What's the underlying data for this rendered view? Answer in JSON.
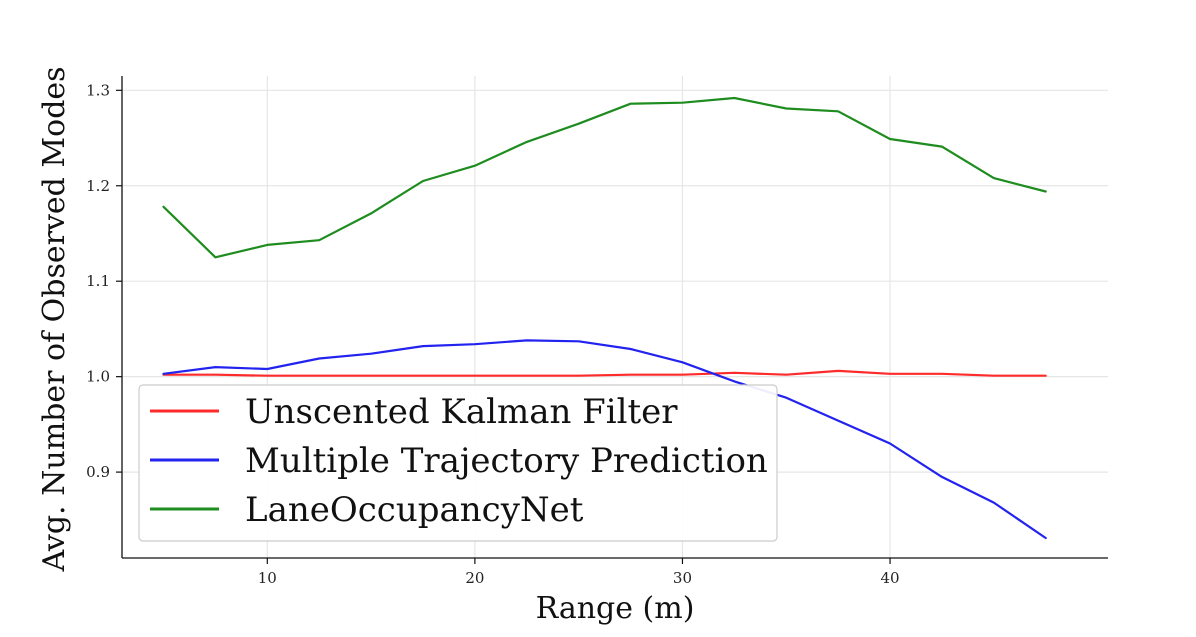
{
  "chart_data": {
    "type": "line",
    "title": "",
    "xlabel": "Range (m)",
    "ylabel": "Avg. Number of Observed Modes",
    "xlim": [
      3,
      50.5
    ],
    "ylim": [
      0.81,
      1.315
    ],
    "xticks": [
      10,
      20,
      30,
      40
    ],
    "yticks": [
      0.9,
      1.0,
      1.1,
      1.2,
      1.3
    ],
    "x_tick_labels": [
      "10",
      "20",
      "30",
      "40"
    ],
    "y_tick_labels": [
      "0.9",
      "1.0",
      "1.1",
      "1.2",
      "1.3"
    ],
    "grid": true,
    "legend_position": "lower-left",
    "x": [
      5,
      7.5,
      10,
      12.5,
      15,
      17.5,
      20,
      22.5,
      25,
      27.5,
      30,
      32.5,
      35,
      37.5,
      40,
      42.5,
      45,
      47.5
    ],
    "series": [
      {
        "name": "Unscented Kalman Filter",
        "color": "#ff2a2a",
        "values": [
          1.002,
          1.002,
          1.001,
          1.001,
          1.001,
          1.001,
          1.001,
          1.001,
          1.001,
          1.002,
          1.002,
          1.004,
          1.002,
          1.006,
          1.003,
          1.003,
          1.001,
          1.001
        ]
      },
      {
        "name": "Multiple Trajectory Prediction",
        "color": "#2323f0",
        "values": [
          1.003,
          1.01,
          1.008,
          1.019,
          1.024,
          1.032,
          1.034,
          1.038,
          1.037,
          1.029,
          1.015,
          0.995,
          0.978,
          0.954,
          0.93,
          0.895,
          0.868,
          0.831
        ]
      },
      {
        "name": "LaneOccupancyNet",
        "color": "#1e8c1e",
        "values": [
          1.178,
          1.125,
          1.138,
          1.143,
          1.171,
          1.205,
          1.221,
          1.246,
          1.265,
          1.286,
          1.287,
          1.292,
          1.281,
          1.278,
          1.249,
          1.241,
          1.208,
          1.194
        ]
      }
    ]
  }
}
